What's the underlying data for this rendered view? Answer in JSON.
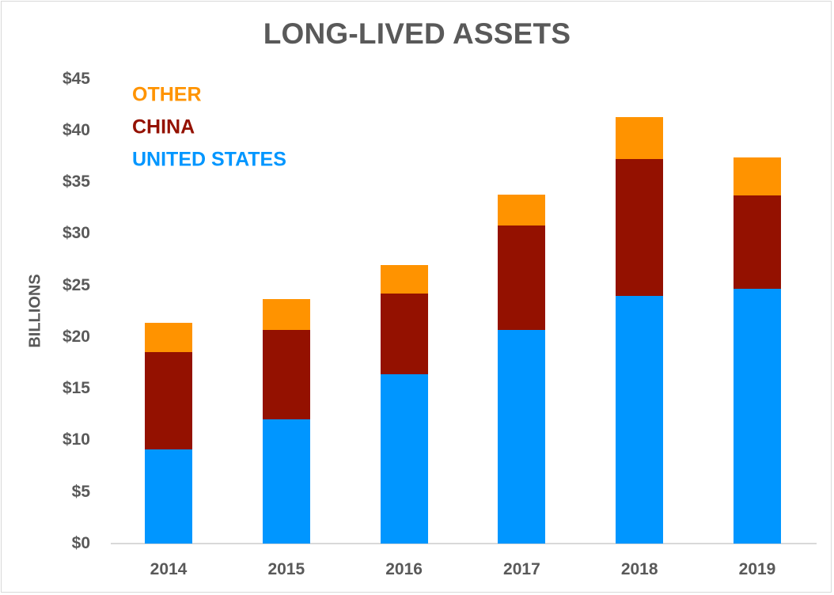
{
  "chart_data": {
    "type": "bar",
    "stacked": true,
    "title": "LONG-LIVED ASSETS",
    "xlabel": "",
    "ylabel": "BILLIONS",
    "ylim": [
      0,
      45
    ],
    "yticks": [
      0,
      5,
      10,
      15,
      20,
      25,
      30,
      35,
      40,
      45
    ],
    "ytick_labels": [
      "$0",
      "$5",
      "$10",
      "$15",
      "$20",
      "$25",
      "$30",
      "$35",
      "$40",
      "$45"
    ],
    "grid": false,
    "legend_position": "top-left",
    "categories": [
      "2014",
      "2015",
      "2016",
      "2017",
      "2018",
      "2019"
    ],
    "series": [
      {
        "name": "UNITED STATES",
        "color": "#0096FF",
        "values": [
          9.1,
          12.0,
          16.4,
          20.7,
          24.0,
          24.7
        ]
      },
      {
        "name": "CHINA",
        "color": "#941100",
        "values": [
          9.4,
          8.7,
          7.8,
          10.1,
          13.2,
          9.0
        ]
      },
      {
        "name": "OTHER",
        "color": "#FF9300",
        "values": [
          2.9,
          3.0,
          2.8,
          3.0,
          4.1,
          3.7
        ]
      }
    ],
    "totals": [
      21.4,
      23.7,
      27.0,
      33.8,
      41.3,
      37.4
    ]
  },
  "legend": {
    "items": [
      {
        "label": "OTHER",
        "color": "#FF9300"
      },
      {
        "label": "CHINA",
        "color": "#941100"
      },
      {
        "label": "UNITED STATES",
        "color": "#0096FF"
      }
    ]
  },
  "colors": {
    "text": "#595959",
    "axis": "#D9D9D9",
    "border": "#D9D9D9"
  }
}
